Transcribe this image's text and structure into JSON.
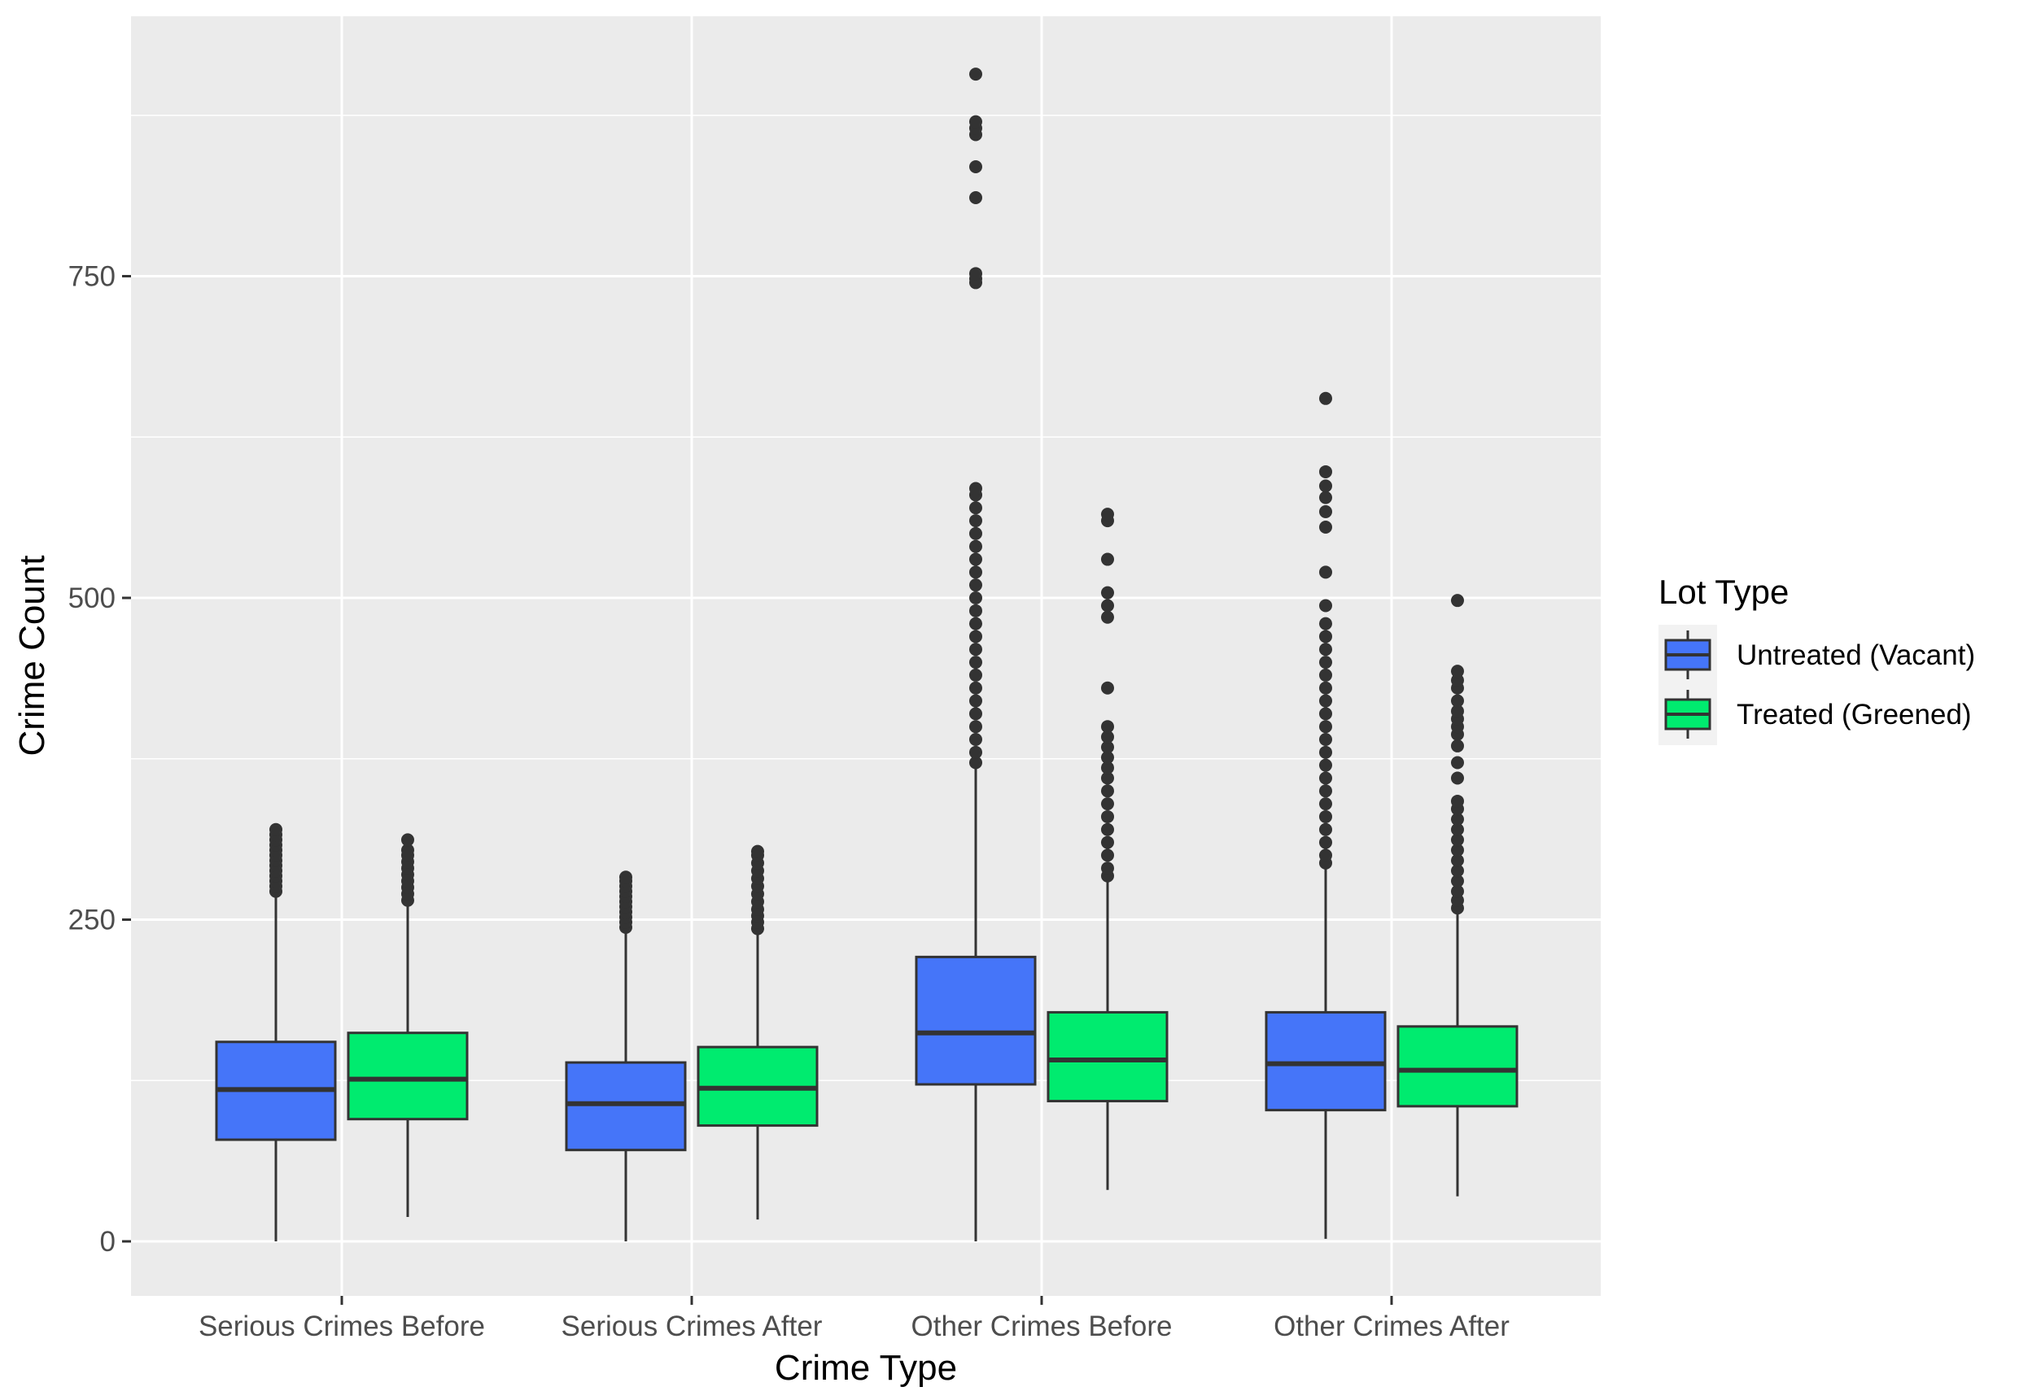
{
  "chart_data": {
    "type": "boxplot",
    "title": "",
    "xlabel": "Crime Type",
    "ylabel": "Crime Count",
    "ylim": [
      -70,
      955
    ],
    "yticks": [
      0,
      250,
      500,
      750
    ],
    "ytick_labels": [
      "0",
      "250",
      "500",
      "750"
    ],
    "minor_yticks": [
      125,
      375,
      625,
      875
    ],
    "grid": true,
    "categories": [
      "Serious Crimes Before",
      "Serious Crimes After",
      "Other Crimes Before",
      "Other Crimes After"
    ],
    "legend": {
      "title": "Lot Type",
      "position": "right",
      "entries": [
        "Untreated (Vacant)",
        "Treated (Greened)"
      ]
    },
    "series": [
      {
        "name": "Untreated (Vacant)",
        "color": "#4575F9",
        "boxes": [
          {
            "whisker_low": 0,
            "q1": 79,
            "median": 118,
            "q3": 155,
            "whisker_high": 269,
            "outliers": [
              272,
              276,
              280,
              284,
              288,
              292,
              296,
              300,
              304,
              308,
              312,
              316,
              320
            ]
          },
          {
            "whisker_low": 0,
            "q1": 71,
            "median": 107,
            "q3": 139,
            "whisker_high": 241,
            "outliers": [
              244,
              248,
              252,
              256,
              260,
              264,
              268,
              272,
              276,
              280,
              283
            ]
          },
          {
            "whisker_low": 0,
            "q1": 122,
            "median": 162,
            "q3": 221,
            "whisker_high": 370,
            "outliers": [
              372,
              380,
              390,
              400,
              410,
              420,
              430,
              440,
              450,
              460,
              470,
              480,
              490,
              500,
              510,
              520,
              530,
              540,
              550,
              560,
              570,
              580,
              585,
              745,
              748,
              752,
              811,
              835,
              860,
              865,
              870,
              907
            ]
          },
          {
            "whisker_low": 2,
            "q1": 102,
            "median": 138,
            "q3": 178,
            "whisker_high": 291,
            "outliers": [
              294,
              300,
              310,
              320,
              330,
              340,
              350,
              360,
              370,
              380,
              390,
              400,
              410,
              420,
              430,
              440,
              450,
              460,
              470,
              480,
              494,
              520,
              555,
              567,
              578,
              587,
              598,
              655
            ]
          }
        ]
      },
      {
        "name": "Treated (Greened)",
        "color": "#00EB6F",
        "boxes": [
          {
            "whisker_low": 19,
            "q1": 95,
            "median": 126,
            "q3": 162,
            "whisker_high": 262,
            "outliers": [
              265,
              270,
              275,
              280,
              285,
              290,
              295,
              300,
              304,
              312
            ]
          },
          {
            "whisker_low": 17,
            "q1": 90,
            "median": 119,
            "q3": 151,
            "whisker_high": 240,
            "outliers": [
              243,
              248,
              253,
              258,
              264,
              270,
              276,
              282,
              288,
              294,
              300,
              303
            ]
          },
          {
            "whisker_low": 40,
            "q1": 109,
            "median": 141,
            "q3": 178,
            "whisker_high": 281,
            "outliers": [
              284,
              290,
              300,
              310,
              320,
              330,
              340,
              350,
              360,
              368,
              376,
              384,
              392,
              400,
              430,
              485,
              494,
              504,
              530,
              560,
              565
            ]
          },
          {
            "whisker_low": 35,
            "q1": 105,
            "median": 133,
            "q3": 167,
            "whisker_high": 256,
            "outliers": [
              259,
              265,
              272,
              280,
              288,
              296,
              304,
              312,
              320,
              328,
              336,
              342,
              360,
              372,
              385,
              394,
              400,
              406,
              412,
              420,
              430,
              436,
              443,
              498
            ]
          }
        ]
      }
    ]
  }
}
